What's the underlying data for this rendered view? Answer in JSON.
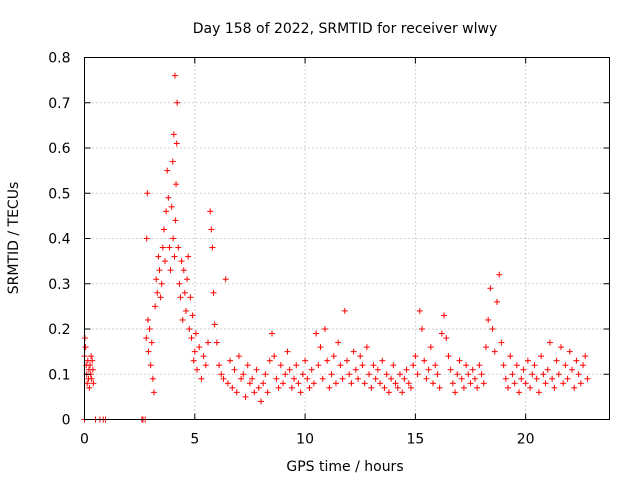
{
  "chart_data": {
    "type": "scatter",
    "title": "Day 158 of 2022, SRMTID for receiver wlwy",
    "xlabel": "GPS time / hours",
    "ylabel": "SRMTID / TECUs",
    "xlim": [
      0,
      23.8
    ],
    "ylim": [
      0,
      0.8
    ],
    "grid": true,
    "marker": "+",
    "color": "#ff0000",
    "xticks": [
      0,
      5,
      10,
      15,
      20
    ],
    "yticks": [
      0,
      0.1,
      0.2,
      0.3,
      0.4,
      0.5,
      0.6,
      0.7,
      0.8
    ],
    "xtick_labels": [
      "0",
      "5",
      "10",
      "15",
      "20"
    ],
    "ytick_labels": [
      "0",
      "0.1",
      "0.2",
      "0.3",
      "0.4",
      "0.5",
      "0.6",
      "0.7",
      "0.8"
    ],
    "series": [
      {
        "name": "SRMTID",
        "x": [
          0.0,
          0.02,
          0.05,
          0.08,
          0.1,
          0.12,
          0.15,
          0.18,
          0.2,
          0.22,
          0.25,
          0.28,
          0.3,
          0.32,
          0.35,
          0.38,
          0.4,
          0.0,
          0.5,
          0.7,
          0.85,
          0.95,
          2.6,
          2.65,
          2.75,
          2.8,
          2.82,
          2.85,
          2.88,
          2.9,
          2.95,
          3.0,
          3.05,
          3.1,
          3.15,
          3.2,
          3.25,
          3.3,
          3.35,
          3.4,
          3.45,
          3.5,
          3.55,
          3.6,
          3.65,
          3.7,
          3.75,
          3.8,
          3.85,
          3.9,
          3.95,
          4.0,
          4.02,
          4.05,
          4.08,
          4.1,
          4.12,
          4.15,
          4.18,
          4.2,
          4.25,
          4.3,
          4.35,
          4.4,
          4.45,
          4.5,
          4.55,
          4.6,
          4.65,
          4.7,
          4.75,
          4.8,
          4.85,
          4.9,
          4.95,
          5.0,
          5.05,
          5.1,
          5.2,
          5.3,
          5.4,
          5.5,
          5.6,
          5.7,
          5.75,
          5.8,
          5.85,
          5.9,
          6.0,
          6.1,
          6.2,
          6.3,
          6.4,
          6.5,
          6.6,
          6.7,
          6.8,
          6.9,
          7.0,
          7.1,
          7.2,
          7.3,
          7.4,
          7.5,
          7.6,
          7.7,
          7.8,
          7.9,
          8.0,
          8.1,
          8.2,
          8.3,
          8.4,
          8.5,
          8.6,
          8.7,
          8.8,
          8.9,
          9.0,
          9.1,
          9.2,
          9.3,
          9.4,
          9.5,
          9.6,
          9.7,
          9.8,
          9.9,
          10.0,
          10.1,
          10.2,
          10.3,
          10.4,
          10.5,
          10.6,
          10.7,
          10.8,
          10.9,
          11.0,
          11.1,
          11.2,
          11.3,
          11.4,
          11.5,
          11.6,
          11.7,
          11.8,
          11.9,
          12.0,
          12.1,
          12.2,
          12.3,
          12.4,
          12.5,
          12.6,
          12.7,
          12.8,
          12.9,
          13.0,
          13.1,
          13.2,
          13.3,
          13.4,
          13.5,
          13.6,
          13.7,
          13.8,
          13.9,
          14.0,
          14.1,
          14.2,
          14.3,
          14.4,
          14.5,
          14.6,
          14.7,
          14.8,
          14.9,
          15.0,
          15.1,
          15.2,
          15.3,
          15.4,
          15.5,
          15.6,
          15.7,
          15.8,
          15.9,
          16.0,
          16.1,
          16.2,
          16.3,
          16.4,
          16.5,
          16.6,
          16.7,
          16.8,
          16.9,
          17.0,
          17.1,
          17.2,
          17.3,
          17.4,
          17.5,
          17.6,
          17.7,
          17.8,
          17.9,
          18.0,
          18.1,
          18.2,
          18.3,
          18.4,
          18.5,
          18.6,
          18.7,
          18.8,
          18.9,
          19.0,
          19.1,
          19.2,
          19.3,
          19.4,
          19.5,
          19.6,
          19.7,
          19.8,
          19.9,
          20.0,
          20.1,
          20.2,
          20.3,
          20.4,
          20.5,
          20.6,
          20.7,
          20.8,
          20.9,
          21.0,
          21.1,
          21.2,
          21.3,
          21.4,
          21.5,
          21.6,
          21.7,
          21.8,
          21.9,
          22.0,
          22.1,
          22.2,
          22.3,
          22.4,
          22.5,
          22.6,
          22.7,
          22.8
        ],
        "y": [
          0.14,
          0.18,
          0.16,
          0.12,
          0.1,
          0.08,
          0.13,
          0.09,
          0.11,
          0.07,
          0.12,
          0.1,
          0.14,
          0.09,
          0.13,
          0.11,
          0.08,
          0.0,
          0.0,
          0.0,
          0.0,
          0.0,
          0.0,
          0.0,
          0.0,
          0.18,
          0.4,
          0.5,
          0.22,
          0.15,
          0.2,
          0.12,
          0.17,
          0.09,
          0.06,
          0.25,
          0.31,
          0.28,
          0.36,
          0.33,
          0.27,
          0.3,
          0.38,
          0.42,
          0.35,
          0.46,
          0.55,
          0.49,
          0.38,
          0.33,
          0.47,
          0.57,
          0.4,
          0.63,
          0.36,
          0.76,
          0.44,
          0.52,
          0.61,
          0.7,
          0.38,
          0.3,
          0.27,
          0.35,
          0.22,
          0.33,
          0.28,
          0.24,
          0.31,
          0.36,
          0.2,
          0.27,
          0.18,
          0.23,
          0.13,
          0.15,
          0.19,
          0.11,
          0.16,
          0.09,
          0.14,
          0.12,
          0.17,
          0.46,
          0.42,
          0.38,
          0.28,
          0.21,
          0.17,
          0.12,
          0.1,
          0.09,
          0.31,
          0.08,
          0.13,
          0.07,
          0.11,
          0.06,
          0.14,
          0.09,
          0.1,
          0.05,
          0.12,
          0.08,
          0.09,
          0.06,
          0.11,
          0.07,
          0.04,
          0.08,
          0.1,
          0.06,
          0.13,
          0.19,
          0.14,
          0.09,
          0.07,
          0.12,
          0.08,
          0.1,
          0.15,
          0.11,
          0.07,
          0.09,
          0.12,
          0.08,
          0.06,
          0.1,
          0.13,
          0.09,
          0.07,
          0.11,
          0.08,
          0.19,
          0.12,
          0.16,
          0.09,
          0.2,
          0.13,
          0.07,
          0.1,
          0.14,
          0.08,
          0.17,
          0.12,
          0.09,
          0.24,
          0.13,
          0.1,
          0.08,
          0.15,
          0.11,
          0.09,
          0.14,
          0.12,
          0.08,
          0.16,
          0.1,
          0.07,
          0.12,
          0.09,
          0.11,
          0.08,
          0.13,
          0.07,
          0.1,
          0.06,
          0.09,
          0.12,
          0.08,
          0.07,
          0.1,
          0.06,
          0.09,
          0.11,
          0.08,
          0.07,
          0.12,
          0.14,
          0.1,
          0.24,
          0.2,
          0.13,
          0.09,
          0.11,
          0.16,
          0.08,
          0.12,
          0.1,
          0.07,
          0.19,
          0.23,
          0.18,
          0.14,
          0.11,
          0.08,
          0.06,
          0.1,
          0.13,
          0.09,
          0.07,
          0.12,
          0.1,
          0.08,
          0.11,
          0.09,
          0.07,
          0.12,
          0.1,
          0.08,
          0.16,
          0.22,
          0.29,
          0.2,
          0.15,
          0.26,
          0.32,
          0.17,
          0.12,
          0.09,
          0.07,
          0.14,
          0.1,
          0.08,
          0.12,
          0.06,
          0.09,
          0.11,
          0.08,
          0.13,
          0.07,
          0.1,
          0.12,
          0.09,
          0.06,
          0.14,
          0.1,
          0.08,
          0.11,
          0.17,
          0.09,
          0.07,
          0.13,
          0.1,
          0.16,
          0.08,
          0.12,
          0.09,
          0.15,
          0.11,
          0.07,
          0.13,
          0.1,
          0.08,
          0.12,
          0.14,
          0.09
        ]
      }
    ]
  }
}
